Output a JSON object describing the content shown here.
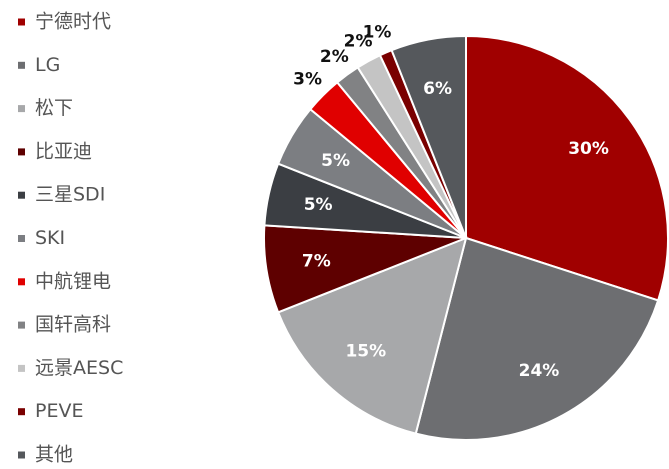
{
  "chart_data": {
    "type": "pie",
    "categories": [
      "宁德时代",
      "LG",
      "松下",
      "比亚迪",
      "三星SDI",
      "SKI",
      "中航锂电",
      "国轩高科",
      "远景AESC",
      "PEVE",
      "其他"
    ],
    "values": [
      30,
      24,
      15,
      7,
      5,
      5,
      3,
      2,
      2,
      1,
      6
    ],
    "value_labels": [
      "30%",
      "24%",
      "15%",
      "7%",
      "5%",
      "5%",
      "3%",
      "2%",
      "2%",
      "1%",
      "6%"
    ],
    "colors": [
      "#a00000",
      "#6d6e71",
      "#a7a8aa",
      "#5e0000",
      "#3b3e43",
      "#7c7e82",
      "#e00000",
      "#818284",
      "#c4c4c4",
      "#7a0000",
      "#55585c"
    ],
    "legend": "left"
  }
}
